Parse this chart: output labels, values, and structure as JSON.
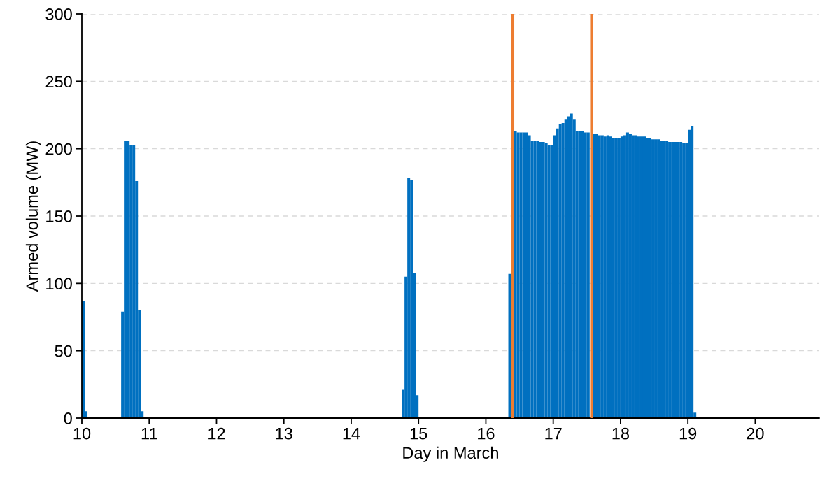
{
  "chart_data": {
    "type": "bar",
    "xlabel": "Day in March",
    "ylabel": "Armed volume (MW)",
    "x": [
      10,
      10.0417,
      10.5833,
      10.625,
      10.6667,
      10.7083,
      10.75,
      10.7917,
      10.8333,
      10.875,
      14.75,
      14.7917,
      14.8333,
      14.875,
      14.9167,
      14.9583,
      16.3333,
      16.375,
      16.4167,
      16.4583,
      16.5,
      16.5417,
      16.5833,
      16.625,
      16.6667,
      16.7083,
      16.75,
      16.7917,
      16.8333,
      16.875,
      16.9167,
      16.9583,
      17,
      17.0417,
      17.0833,
      17.125,
      17.1667,
      17.2083,
      17.25,
      17.2917,
      17.3333,
      17.375,
      17.4167,
      17.4583,
      17.5,
      17.5417,
      17.5833,
      17.625,
      17.6667,
      17.7083,
      17.75,
      17.7917,
      17.8333,
      17.875,
      17.9167,
      17.9583,
      18,
      18.0417,
      18.0833,
      18.125,
      18.1667,
      18.2083,
      18.25,
      18.2917,
      18.3333,
      18.375,
      18.4167,
      18.4583,
      18.5,
      18.5417,
      18.5833,
      18.625,
      18.6667,
      18.7083,
      18.75,
      18.7917,
      18.8333,
      18.875,
      18.9167,
      18.9583,
      19,
      19.0417,
      19.0833
    ],
    "series": [
      {
        "color": "#0070c0",
        "values": [
          87,
          5,
          79,
          206,
          206,
          203,
          203,
          176,
          80,
          5,
          21,
          105,
          178,
          177,
          108,
          17,
          107,
          null,
          213,
          212,
          212,
          212,
          212,
          210,
          206,
          206,
          206,
          205,
          205,
          204,
          203,
          203,
          210,
          215,
          218,
          219,
          222,
          224,
          226,
          222,
          213,
          213,
          213,
          212,
          212,
          null,
          211,
          211,
          210,
          210,
          209,
          210,
          209,
          208,
          208,
          208,
          209,
          210,
          212,
          211,
          210,
          210,
          209,
          209,
          209,
          208,
          208,
          207,
          207,
          207,
          206,
          206,
          206,
          205,
          205,
          205,
          205,
          205,
          204,
          204,
          214,
          217,
          4
        ]
      }
    ],
    "xlim": [
      10,
      20.95
    ],
    "xticks": [
      10,
      11,
      12,
      13,
      14,
      15,
      16,
      17,
      18,
      19,
      20
    ],
    "ylim": [
      0,
      300
    ],
    "yticks": [
      0,
      50,
      100,
      150,
      200,
      250,
      300
    ],
    "grid": "y",
    "ref_lines": [
      {
        "axis": "x",
        "value": 16.4,
        "color": "#ed7d31"
      },
      {
        "axis": "x",
        "value": 17.57,
        "color": "#ed7d31"
      }
    ]
  }
}
